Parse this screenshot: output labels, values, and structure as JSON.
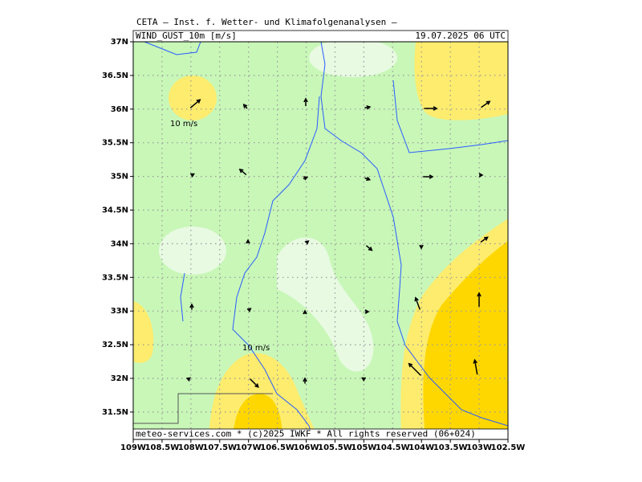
{
  "header": {
    "title": "CETA – Inst. f. Wetter- und Klimafolgenanalysen –",
    "variable": "WIND_GUST_10m [m/s]",
    "datetime": "19.07.2025 06 UTC"
  },
  "map": {
    "lat_labels": [
      "37N",
      "36.5N",
      "36N",
      "35.5N",
      "35N",
      "34.5N",
      "34N",
      "33.5N",
      "33N",
      "32.5N",
      "32N",
      "31.5N"
    ],
    "lon_labels": [
      "109W",
      "108.5W",
      "108W",
      "107.5W",
      "107W",
      "106.5W",
      "106W",
      "105.5W",
      "105W",
      "104.5W",
      "104W",
      "103.5W",
      "103W",
      "102.5W"
    ],
    "contour_labels": [
      "10 m/s",
      "10 m/s"
    ]
  },
  "footer": {
    "credit": "meteo-services.com * (c)2025 IWKF * All rights reserved (06+024)"
  }
}
